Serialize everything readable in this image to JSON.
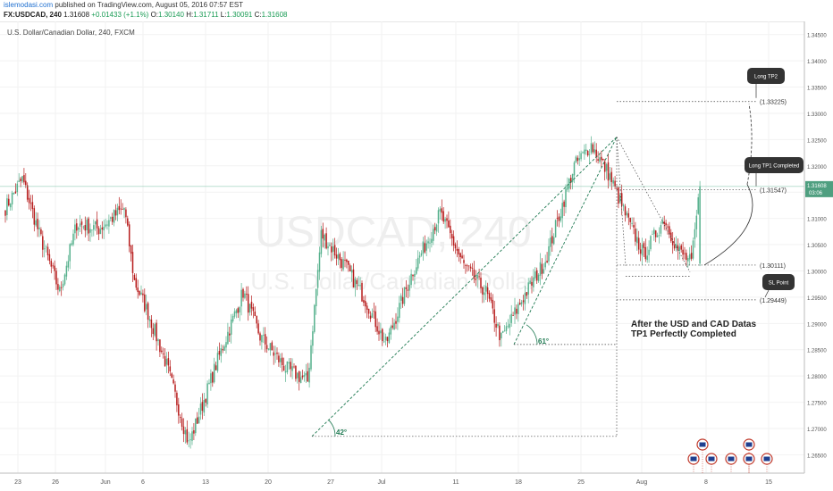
{
  "header": {
    "author": "islemodasi.com",
    "published_text": "published on TradingView.com, August 05, 2016 07:57 EST",
    "symbol": "FX:USDCAD, 240",
    "last": "1.31608",
    "change": "+0.01433 (+1.1%)",
    "o_label": "O:",
    "o_value": "1.30140",
    "h_label": "H:",
    "h_value": "1.31711",
    "l_label": "L:",
    "l_value": "1.30091",
    "c_label": "C:",
    "c_value": "1.31608"
  },
  "chart_subtitle": "U.S. Dollar/Canadian Dollar, 240, FXCM",
  "watermark": {
    "line1": "USDCAD, 240",
    "line2": "U.S. Dollar/Canadian Dollar"
  },
  "colors": {
    "up": "#55b08c",
    "down": "#b71c1c",
    "trend": "#1f7a52",
    "axis_text": "#555555",
    "grid": "#f2f2f2"
  },
  "price_tag": {
    "value": "1.31608",
    "countdown": "03:06"
  },
  "chart_data": {
    "type": "candlestick",
    "ylim": [
      1.2615,
      1.3475
    ],
    "y_ticks": [
      "1.34500",
      "1.34000",
      "1.33500",
      "1.33000",
      "1.32500",
      "1.32000",
      "1.31500",
      "1.31000",
      "1.30500",
      "1.30000",
      "1.29500",
      "1.29000",
      "1.28500",
      "1.28000",
      "1.27500",
      "1.27000",
      "1.26500"
    ],
    "x_ticks": [
      "23",
      "26",
      "Jun",
      "6",
      "13",
      "20",
      "27",
      "Jul",
      "11",
      "18",
      "25",
      "Aug",
      "8",
      "15"
    ],
    "anchor_points": [
      {
        "t": 0,
        "price": 1.312
      },
      {
        "t": 10,
        "price": 1.3175
      },
      {
        "t": 20,
        "price": 1.307
      },
      {
        "t": 32,
        "price": 1.296
      },
      {
        "t": 42,
        "price": 1.309
      },
      {
        "t": 55,
        "price": 1.308
      },
      {
        "t": 70,
        "price": 1.312
      },
      {
        "t": 76,
        "price": 1.298
      },
      {
        "t": 84,
        "price": 1.292
      },
      {
        "t": 95,
        "price": 1.282
      },
      {
        "t": 108,
        "price": 1.267
      },
      {
        "t": 125,
        "price": 1.283
      },
      {
        "t": 140,
        "price": 1.296
      },
      {
        "t": 150,
        "price": 1.2875
      },
      {
        "t": 165,
        "price": 1.2815
      },
      {
        "t": 178,
        "price": 1.279
      },
      {
        "t": 186,
        "price": 1.307
      },
      {
        "t": 200,
        "price": 1.301
      },
      {
        "t": 212,
        "price": 1.2945
      },
      {
        "t": 224,
        "price": 1.286
      },
      {
        "t": 240,
        "price": 1.3
      },
      {
        "t": 256,
        "price": 1.311
      },
      {
        "t": 270,
        "price": 1.301
      },
      {
        "t": 283,
        "price": 1.296
      },
      {
        "t": 292,
        "price": 1.287
      },
      {
        "t": 305,
        "price": 1.295
      },
      {
        "t": 318,
        "price": 1.302
      },
      {
        "t": 335,
        "price": 1.32
      },
      {
        "t": 345,
        "price": 1.324
      },
      {
        "t": 356,
        "price": 1.318
      },
      {
        "t": 366,
        "price": 1.31
      },
      {
        "t": 376,
        "price": 1.303
      },
      {
        "t": 388,
        "price": 1.31
      },
      {
        "t": 396,
        "price": 1.304
      },
      {
        "t": 404,
        "price": 1.3015
      },
      {
        "t": 409,
        "price": 1.316
      }
    ],
    "annotations": {
      "text": "After the USD and CAD Datas\nTP1 Perfectly Completed",
      "angle_1": "42°",
      "angle_2": "61°",
      "levels": [
        {
          "label": "(1.33225)",
          "price": 1.33225
        },
        {
          "label": "(1.31547)",
          "price": 1.31547
        },
        {
          "label": "(1.30111)",
          "price": 1.30111
        },
        {
          "label": "(1.29449)",
          "price": 1.29449
        }
      ],
      "callouts": [
        "Long TP2",
        "Long TP1 Completed",
        "SL Point"
      ]
    }
  }
}
